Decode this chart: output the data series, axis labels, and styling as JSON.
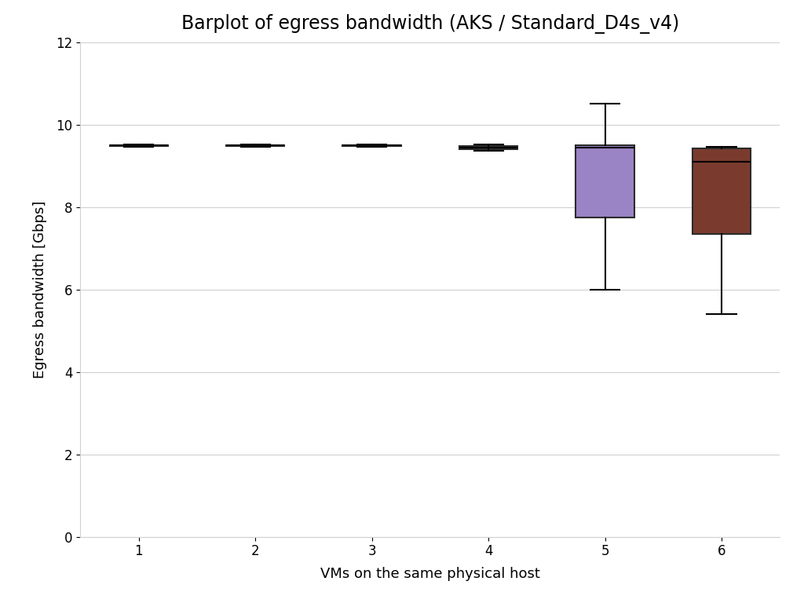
{
  "title": "Barplot of egress bandwidth (AKS / Standard_D4s_v4)",
  "xlabel": "VMs on the same physical host",
  "ylabel": "Egress bandwidth [Gbps]",
  "ylim": [
    0,
    12
  ],
  "yticks": [
    0,
    2,
    4,
    6,
    8,
    10,
    12
  ],
  "xticks": [
    1,
    2,
    3,
    4,
    5,
    6
  ],
  "groups": [
    1,
    2,
    3,
    4,
    5,
    6
  ],
  "box_data": {
    "1": {
      "whislo": 9.47,
      "q1": 9.485,
      "med": 9.49,
      "q3": 9.495,
      "whishi": 9.51
    },
    "2": {
      "whislo": 9.47,
      "q1": 9.485,
      "med": 9.49,
      "q3": 9.495,
      "whishi": 9.51
    },
    "3": {
      "whislo": 9.47,
      "q1": 9.485,
      "med": 9.49,
      "q3": 9.495,
      "whishi": 9.51
    },
    "4": {
      "whislo": 9.36,
      "q1": 9.4,
      "med": 9.44,
      "q3": 9.48,
      "whishi": 9.52
    },
    "5": {
      "whislo": 6.0,
      "q1": 7.75,
      "med": 9.45,
      "q3": 9.5,
      "whishi": 10.5
    },
    "6": {
      "whislo": 5.4,
      "q1": 7.35,
      "med": 9.1,
      "q3": 9.42,
      "whishi": 9.46
    }
  },
  "box_colors": {
    "1": "#2b2b2b",
    "2": "#2b2b2b",
    "3": "#2b2b2b",
    "4": "#2b2b2b",
    "5": "#9b84c5",
    "6": "#7a3b2e"
  },
  "background_color": "#ffffff",
  "grid_color": "#d0d0d0",
  "title_fontsize": 17,
  "label_fontsize": 13,
  "tick_fontsize": 12,
  "box_width": 0.5,
  "figsize": [
    10.24,
    7.68
  ],
  "dpi": 100
}
